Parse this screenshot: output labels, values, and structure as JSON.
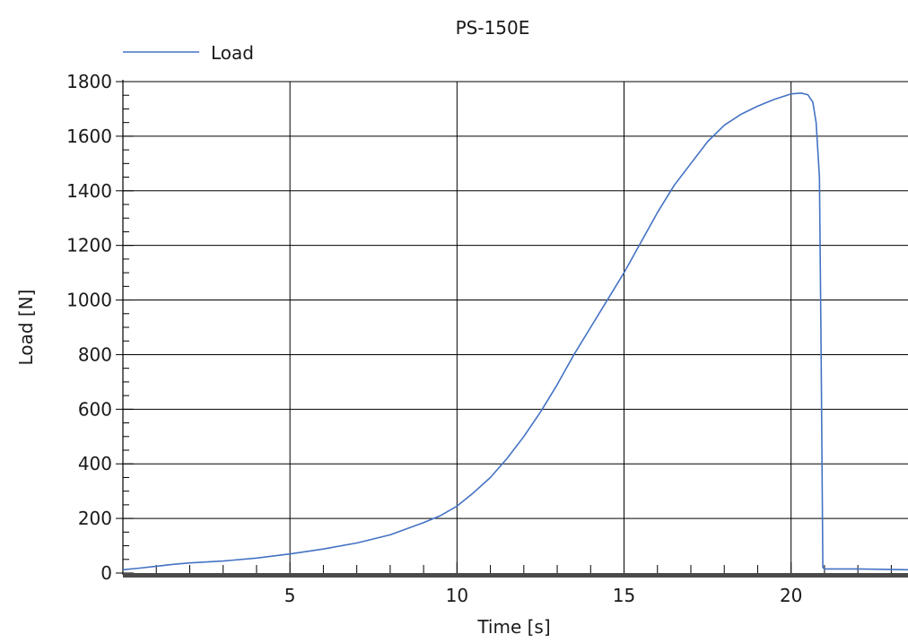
{
  "chart_data": {
    "type": "line",
    "title": "PS-150E",
    "xlabel": "Time [s]",
    "ylabel": "Load [N]",
    "xlim": [
      0,
      23.5
    ],
    "ylim": [
      0,
      1800
    ],
    "x_ticks": [
      5,
      10,
      15,
      20
    ],
    "x_tick_labels": [
      "5",
      "10",
      "15",
      "20"
    ],
    "x_minor_step": 1,
    "y_ticks": [
      0,
      200,
      400,
      600,
      800,
      1000,
      1200,
      1400,
      1600,
      1800
    ],
    "y_tick_labels": [
      "0",
      "200",
      "400",
      "600",
      "800",
      "1000",
      "1200",
      "1400",
      "1600",
      "1800"
    ],
    "y_minor_step": 50,
    "grid": true,
    "legend_position": "top-left",
    "series": [
      {
        "name": "Load",
        "color": "#4472c4",
        "x": [
          0,
          0.5,
          1,
          1.5,
          2,
          3,
          4,
          5,
          6,
          7,
          8,
          9,
          9.5,
          10,
          10.5,
          11,
          11.5,
          12,
          12.5,
          13,
          13.5,
          14,
          14.5,
          15,
          15.5,
          16,
          16.5,
          17,
          17.5,
          18,
          18.5,
          19,
          19.5,
          20,
          20.3,
          20.5,
          20.65,
          20.75,
          20.85,
          20.9,
          20.95,
          21.0,
          21.5,
          22,
          23.5
        ],
        "y": [
          12,
          18,
          25,
          32,
          37,
          44,
          55,
          70,
          88,
          110,
          140,
          185,
          210,
          245,
          295,
          350,
          420,
          500,
          590,
          690,
          800,
          900,
          1000,
          1100,
          1210,
          1320,
          1420,
          1500,
          1580,
          1640,
          1680,
          1710,
          1735,
          1755,
          1758,
          1752,
          1725,
          1650,
          1450,
          800,
          20,
          15,
          15,
          15,
          12
        ]
      }
    ]
  }
}
